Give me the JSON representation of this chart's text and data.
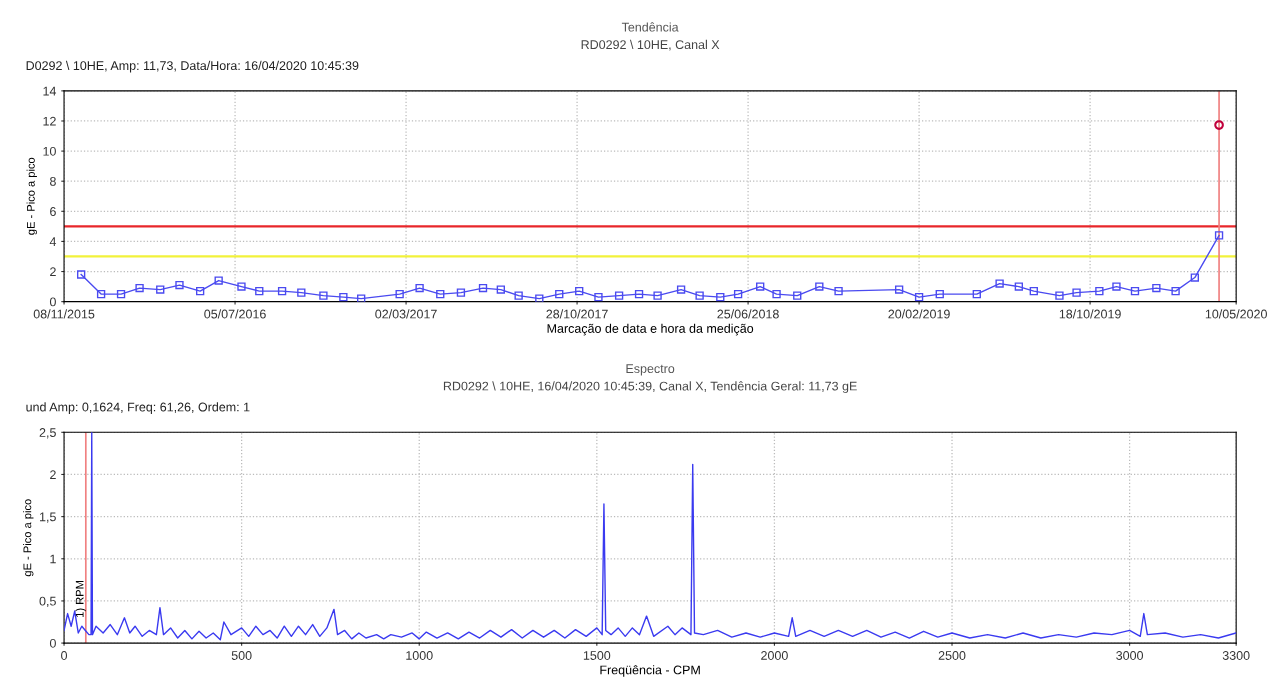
{
  "chart_data": [
    {
      "type": "line",
      "title": "Tendência",
      "subtitle": "RD0292 \\ 10HE, Canal X",
      "xlabel": "Marcação de data e hora da medição",
      "ylabel": "gE - Pico a pico",
      "annotations": [
        "D0292 \\ 10HE, Amp: 11,73, Data/Hora: 16/04/2020 10:45:39"
      ],
      "series": [
        {
          "color": "#4a4af0",
          "marker": "square",
          "x": [
            "2015-12-02",
            "2015-12-30",
            "2016-01-27",
            "2016-02-22",
            "2016-03-22",
            "2016-04-18",
            "2016-05-17",
            "2016-06-12",
            "2016-07-14",
            "2016-08-08",
            "2016-09-09",
            "2016-10-06",
            "2016-11-06",
            "2016-12-04",
            "2016-12-29",
            "2017-02-21",
            "2017-03-21",
            "2017-04-19",
            "2017-05-18",
            "2017-06-18",
            "2017-07-13",
            "2017-08-07",
            "2017-09-05",
            "2017-10-03",
            "2017-10-31",
            "2017-11-27",
            "2017-12-26",
            "2018-01-23",
            "2018-02-18",
            "2018-03-23",
            "2018-04-18",
            "2018-05-17",
            "2018-06-11",
            "2018-07-12",
            "2018-08-04",
            "2018-09-02",
            "2018-10-03",
            "2018-10-30",
            "2019-01-23",
            "2019-02-20",
            "2019-03-21",
            "2019-05-12",
            "2019-06-13",
            "2019-07-10",
            "2019-07-31",
            "2019-09-05",
            "2019-09-29",
            "2019-10-31",
            "2019-11-24",
            "2019-12-20",
            "2020-01-19",
            "2020-02-15",
            "2020-03-13",
            "2020-04-16"
          ],
          "values": [
            1.8,
            0.5,
            0.5,
            0.9,
            0.8,
            1.1,
            0.7,
            1.4,
            1.0,
            0.7,
            0.7,
            0.6,
            0.4,
            0.3,
            0.2,
            0.5,
            0.9,
            0.5,
            0.6,
            0.9,
            0.8,
            0.4,
            0.2,
            0.5,
            0.7,
            0.3,
            0.4,
            0.5,
            0.4,
            0.8,
            0.4,
            0.3,
            0.5,
            1.0,
            0.5,
            0.4,
            1.0,
            0.7,
            0.8,
            0.3,
            0.5,
            0.5,
            1.2,
            1.0,
            0.7,
            0.4,
            0.6,
            0.7,
            1.0,
            0.7,
            0.9,
            0.7,
            1.6,
            4.4
          ]
        },
        {
          "type": "scatter",
          "color": "#c0003c",
          "marker": "circle",
          "x": [
            "2020-04-16"
          ],
          "values": [
            11.73
          ]
        }
      ],
      "xlim": [
        "2015-11-08",
        "2020-05-10"
      ],
      "xticks": [
        {
          "value": "2015-11-08",
          "label": "08/11/2015"
        },
        {
          "value": "2016-07-05",
          "label": "05/07/2016"
        },
        {
          "value": "2017-03-02",
          "label": "02/03/2017"
        },
        {
          "value": "2017-10-28",
          "label": "28/10/2017"
        },
        {
          "value": "2018-06-25",
          "label": "25/06/2018"
        },
        {
          "value": "2019-02-20",
          "label": "20/02/2019"
        },
        {
          "value": "2019-10-18",
          "label": "18/10/2019"
        },
        {
          "value": "2020-05-10",
          "label": "10/05/2020"
        }
      ],
      "ylim": [
        0,
        14
      ],
      "yticks": [
        0,
        2,
        4,
        6,
        8,
        10,
        12,
        14
      ],
      "ref_lines": [
        {
          "axis": "y",
          "value": 5,
          "color": "#e8262a"
        },
        {
          "axis": "y",
          "value": 3,
          "color": "#f2f23a"
        },
        {
          "axis": "x",
          "value": "2020-04-16",
          "color": "#f08080"
        }
      ],
      "grid": true,
      "line_style": "solid"
    },
    {
      "type": "line",
      "title": "Espectro",
      "subtitle": "RD0292 \\ 10HE, 16/04/2020 10:45:39, Canal X, Tendência Geral: 11,73 gE",
      "xlabel": "Freqüência - CPM",
      "ylabel": "gE - Pico a pico",
      "annotations": [
        "und Amp: 0,1624, Freq: 61,26, Ordem: 1",
        {
          "text": "1) RPM",
          "x": 61.26,
          "y": 0.3
        }
      ],
      "series": [
        {
          "color": "#3a3af0",
          "marker": "none",
          "x": [
            0,
            10,
            20,
            30,
            40,
            50,
            60,
            70,
            76,
            78,
            80,
            90,
            110,
            130,
            150,
            170,
            185,
            200,
            220,
            240,
            260,
            270,
            280,
            300,
            320,
            340,
            360,
            380,
            400,
            420,
            440,
            450,
            470,
            500,
            520,
            540,
            560,
            580,
            600,
            620,
            640,
            660,
            680,
            700,
            720,
            740,
            760,
            770,
            790,
            810,
            830,
            850,
            880,
            900,
            920,
            950,
            980,
            1000,
            1020,
            1050,
            1080,
            1110,
            1140,
            1170,
            1200,
            1230,
            1260,
            1290,
            1320,
            1350,
            1380,
            1410,
            1440,
            1470,
            1500,
            1515,
            1520,
            1525,
            1540,
            1560,
            1580,
            1600,
            1620,
            1640,
            1660,
            1700,
            1720,
            1740,
            1765,
            1770,
            1775,
            1800,
            1840,
            1880,
            1920,
            1960,
            2000,
            2040,
            2050,
            2060,
            2100,
            2140,
            2180,
            2220,
            2260,
            2300,
            2340,
            2380,
            2420,
            2460,
            2500,
            2550,
            2600,
            2650,
            2700,
            2750,
            2800,
            2850,
            2900,
            2950,
            3000,
            3030,
            3040,
            3050,
            3100,
            3150,
            3200,
            3250,
            3300
          ],
          "values": [
            0.15,
            0.35,
            0.2,
            0.38,
            0.12,
            0.2,
            0.15,
            0.1,
            0.1,
            2.5,
            0.1,
            0.2,
            0.12,
            0.22,
            0.1,
            0.3,
            0.12,
            0.2,
            0.08,
            0.15,
            0.1,
            0.42,
            0.1,
            0.18,
            0.06,
            0.15,
            0.05,
            0.14,
            0.06,
            0.12,
            0.04,
            0.25,
            0.1,
            0.18,
            0.08,
            0.2,
            0.1,
            0.15,
            0.06,
            0.2,
            0.08,
            0.2,
            0.1,
            0.22,
            0.08,
            0.18,
            0.4,
            0.1,
            0.15,
            0.05,
            0.12,
            0.06,
            0.1,
            0.05,
            0.1,
            0.07,
            0.12,
            0.05,
            0.13,
            0.06,
            0.12,
            0.05,
            0.13,
            0.06,
            0.15,
            0.07,
            0.16,
            0.06,
            0.15,
            0.07,
            0.15,
            0.06,
            0.16,
            0.08,
            0.18,
            0.1,
            1.65,
            0.15,
            0.1,
            0.18,
            0.08,
            0.18,
            0.1,
            0.32,
            0.08,
            0.2,
            0.1,
            0.18,
            0.1,
            2.12,
            0.12,
            0.1,
            0.15,
            0.07,
            0.12,
            0.07,
            0.12,
            0.08,
            0.3,
            0.08,
            0.15,
            0.08,
            0.15,
            0.08,
            0.15,
            0.07,
            0.13,
            0.06,
            0.14,
            0.07,
            0.12,
            0.06,
            0.1,
            0.06,
            0.12,
            0.06,
            0.1,
            0.07,
            0.12,
            0.1,
            0.15,
            0.08,
            0.35,
            0.1,
            0.12,
            0.07,
            0.1,
            0.06,
            0.12
          ]
        }
      ],
      "xlim": [
        0,
        3300
      ],
      "xticks": [
        0,
        500,
        1000,
        1500,
        2000,
        2500,
        3000,
        3300
      ],
      "ylim": [
        0,
        2.5
      ],
      "yticks": [
        0,
        {
          "value": 0.5,
          "label": "0,5"
        },
        1,
        {
          "value": 1.5,
          "label": "1,5"
        },
        2,
        {
          "value": 2.5,
          "label": "2,5"
        }
      ],
      "ref_lines": [
        {
          "axis": "x",
          "value": 61.26,
          "color": "#f08080"
        }
      ],
      "grid": true,
      "line_style": "solid"
    }
  ]
}
